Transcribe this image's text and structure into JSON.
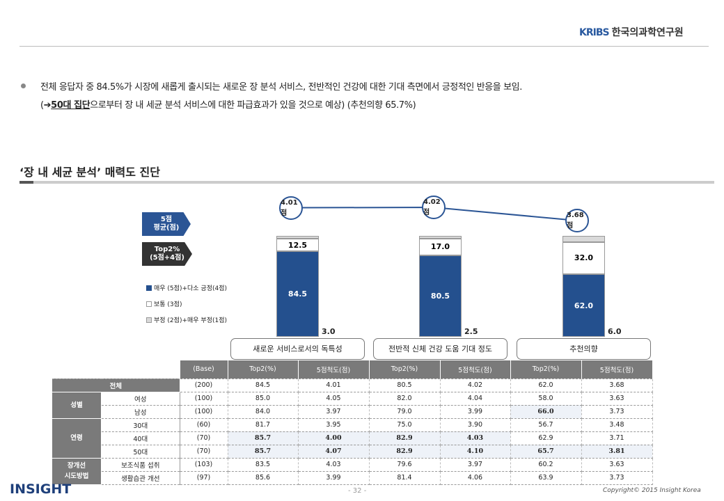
{
  "header": {
    "logo_mark": "KRIBS",
    "org": "한국의과학연구원"
  },
  "bullets": {
    "line1": "전체 응답자 중 84.5%가 시장에 새롭게 출시되는 새로운 장 분석 서비스, 전반적인 건강에 대한 기대 측면에서 긍정적인 반응을 보임.",
    "line2_prefix": "(➔",
    "line2_group": "50대 집단",
    "line2_rest": "으로부터 장 내 세균 분석 서비스에 대한 파급효과가 있을 것으로 예상) (추천의향 65.7%)"
  },
  "section_title": "‘장 내 세균 분석’ 매력도 진단",
  "tags": {
    "avg": "5점\n평균(점)",
    "top2": "Top2%\n(5점+4점)"
  },
  "chart_data": {
    "type": "bar",
    "stacked": true,
    "categories": [
      "새로운 서비스로서의 독특성",
      "전반적 신체 건강 도움 기대 정도",
      "추천의향"
    ],
    "series": [
      {
        "name": "매우 (5점)+다소 긍정(4점)",
        "color": "#24508e",
        "values": [
          84.5,
          80.5,
          62.0
        ]
      },
      {
        "name": "보통 (3점)",
        "color": "#ffffff",
        "values": [
          12.5,
          17.0,
          32.0
        ]
      },
      {
        "name": "부정 (2점)+매우 부정(1점)",
        "color": "#d9d9d9",
        "values": [
          3.0,
          2.5,
          6.0
        ]
      }
    ],
    "line": {
      "name": "5점 평균(점)",
      "labels": [
        "4.01점",
        "4.02점",
        "3.68점"
      ],
      "values": [
        4.01,
        4.02,
        3.68
      ]
    },
    "ylim": [
      0,
      100
    ]
  },
  "table": {
    "headers": [
      "(Base)",
      "Top2(%)",
      "5점척도(점)",
      "Top2(%)",
      "5점척도(점)",
      "Top2(%)",
      "5점척도(점)"
    ],
    "rows": [
      {
        "group": "전체",
        "sub": "",
        "span": 1,
        "vals": [
          "(200)",
          "84.5",
          "4.01",
          "80.5",
          "4.02",
          "62.0",
          "3.68"
        ],
        "hl": []
      },
      {
        "group": "성별",
        "sub": "여성",
        "span": 2,
        "vals": [
          "(100)",
          "85.0",
          "4.05",
          "82.0",
          "4.04",
          "58.0",
          "3.63"
        ],
        "hl": []
      },
      {
        "group": "",
        "sub": "남성",
        "vals": [
          "(100)",
          "84.0",
          "3.97",
          "79.0",
          "3.99",
          "66.0",
          "3.73"
        ],
        "hl": [
          5
        ]
      },
      {
        "group": "연령",
        "sub": "30대",
        "span": 3,
        "vals": [
          "(60)",
          "81.7",
          "3.95",
          "75.0",
          "3.90",
          "56.7",
          "3.48"
        ],
        "hl": []
      },
      {
        "group": "",
        "sub": "40대",
        "vals": [
          "(70)",
          "85.7",
          "4.00",
          "82.9",
          "4.03",
          "62.9",
          "3.71"
        ],
        "hl": [
          1,
          2,
          3,
          4
        ]
      },
      {
        "group": "",
        "sub": "50대",
        "vals": [
          "(70)",
          "85.7",
          "4.07",
          "82.9",
          "4.10",
          "65.7",
          "3.81"
        ],
        "hl": [
          1,
          2,
          3,
          4,
          5,
          6
        ]
      },
      {
        "group": "장개선\n시도방법",
        "sub": "보조식품 섭취",
        "span": 2,
        "vals": [
          "(103)",
          "83.5",
          "4.03",
          "79.6",
          "3.97",
          "60.2",
          "3.63"
        ],
        "hl": []
      },
      {
        "group": "",
        "sub": "생활습관 개선",
        "vals": [
          "(97)",
          "85.6",
          "3.99",
          "81.4",
          "4.06",
          "63.9",
          "3.73"
        ],
        "hl": []
      }
    ]
  },
  "footer": {
    "brand": "INSIGHT",
    "page": "- 32 -",
    "copyright": "Copyright© 2015 Insight Korea"
  }
}
